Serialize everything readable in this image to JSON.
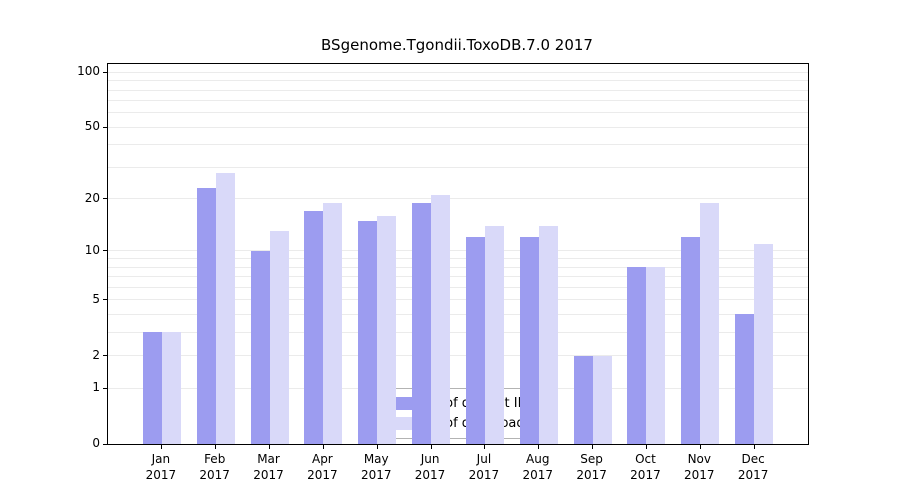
{
  "title": "BSgenome.Tgondii.ToxoDB.7.0 2017",
  "chart_data": {
    "type": "bar",
    "title": "BSgenome.Tgondii.ToxoDB.7.0 2017",
    "months": [
      "Jan",
      "Feb",
      "Mar",
      "Apr",
      "May",
      "Jun",
      "Jul",
      "Aug",
      "Sep",
      "Oct",
      "Nov",
      "Dec"
    ],
    "year": "2017",
    "series": [
      {
        "name": "Nb of distinct IPs",
        "color": "#9c9cf0",
        "values": [
          3,
          23,
          10,
          17,
          15,
          19,
          12,
          12,
          2,
          8,
          12,
          4
        ]
      },
      {
        "name": "Nb of downloads",
        "color": "#d9d9f9",
        "values": [
          3,
          28,
          13,
          19,
          16,
          21,
          14,
          14,
          2,
          8,
          19,
          11
        ]
      }
    ],
    "yticks": [
      100,
      50,
      20,
      10,
      5,
      2,
      1,
      0
    ],
    "scale": "log1p",
    "ylim": [
      0,
      111
    ],
    "grid": true,
    "legend_position": "bottom-center",
    "xlabel": "",
    "ylabel": ""
  }
}
